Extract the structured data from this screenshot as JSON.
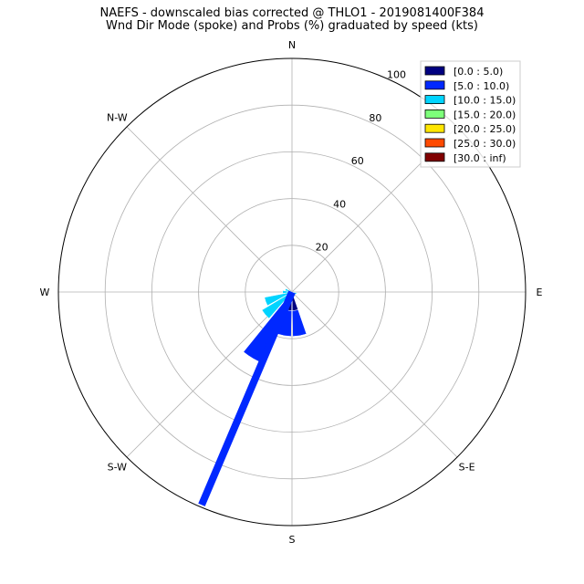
{
  "chart_data": {
    "type": "windrose",
    "title": "NAEFS - downscaled bias corrected @ THLO1 - 2019081400F384",
    "subtitle": "Wnd Dir Mode (spoke) and Probs (%) graduated by speed (kts)",
    "directions": [
      "N",
      "N-W",
      "W",
      "S-W",
      "S",
      "S-E",
      "E"
    ],
    "r_ticks": [
      20,
      40,
      60,
      80,
      100
    ],
    "r_max": 100,
    "grid": true,
    "legend_position": "top-right",
    "bins": [
      {
        "label": "[0.0 : 5.0)",
        "color": "#000080"
      },
      {
        "label": "[5.0 : 10.0)",
        "color": "#0028ff"
      },
      {
        "label": "[10.0 : 15.0)",
        "color": "#00d4ff"
      },
      {
        "label": "[15.0 : 20.0)",
        "color": "#7dff7a"
      },
      {
        "label": "[20.0 : 25.0)",
        "color": "#ffe600"
      },
      {
        "label": "[25.0 : 30.0)",
        "color": "#ff4a00"
      },
      {
        "label": "[30.0 : inf)",
        "color": "#800000"
      }
    ],
    "wedges": [
      {
        "direction_deg": 170,
        "bin": 0,
        "r0": 0,
        "r1": 8
      },
      {
        "direction_deg": 190,
        "bin": 0,
        "r0": 0,
        "r1": 8
      },
      {
        "direction_deg": 170,
        "bin": 1,
        "r0": 8,
        "r1": 19
      },
      {
        "direction_deg": 190,
        "bin": 1,
        "r0": 8,
        "r1": 19
      },
      {
        "direction_deg": 210,
        "bin": 1,
        "r0": 0,
        "r1": 33
      },
      {
        "direction_deg": 250,
        "bin": 2,
        "r0": 0,
        "r1": 12
      },
      {
        "direction_deg": 230,
        "bin": 2,
        "r0": 0,
        "r1": 15
      },
      {
        "direction_deg": 270,
        "bin": 2,
        "r0": 0,
        "r1": 4
      },
      {
        "direction_deg": 290,
        "bin": 2,
        "r0": 0,
        "r1": 3
      },
      {
        "direction_deg": 110,
        "bin": 2,
        "r0": 0,
        "r1": 2
      }
    ],
    "spoke": {
      "direction_deg": 203,
      "r": 99,
      "bin": 1
    }
  }
}
